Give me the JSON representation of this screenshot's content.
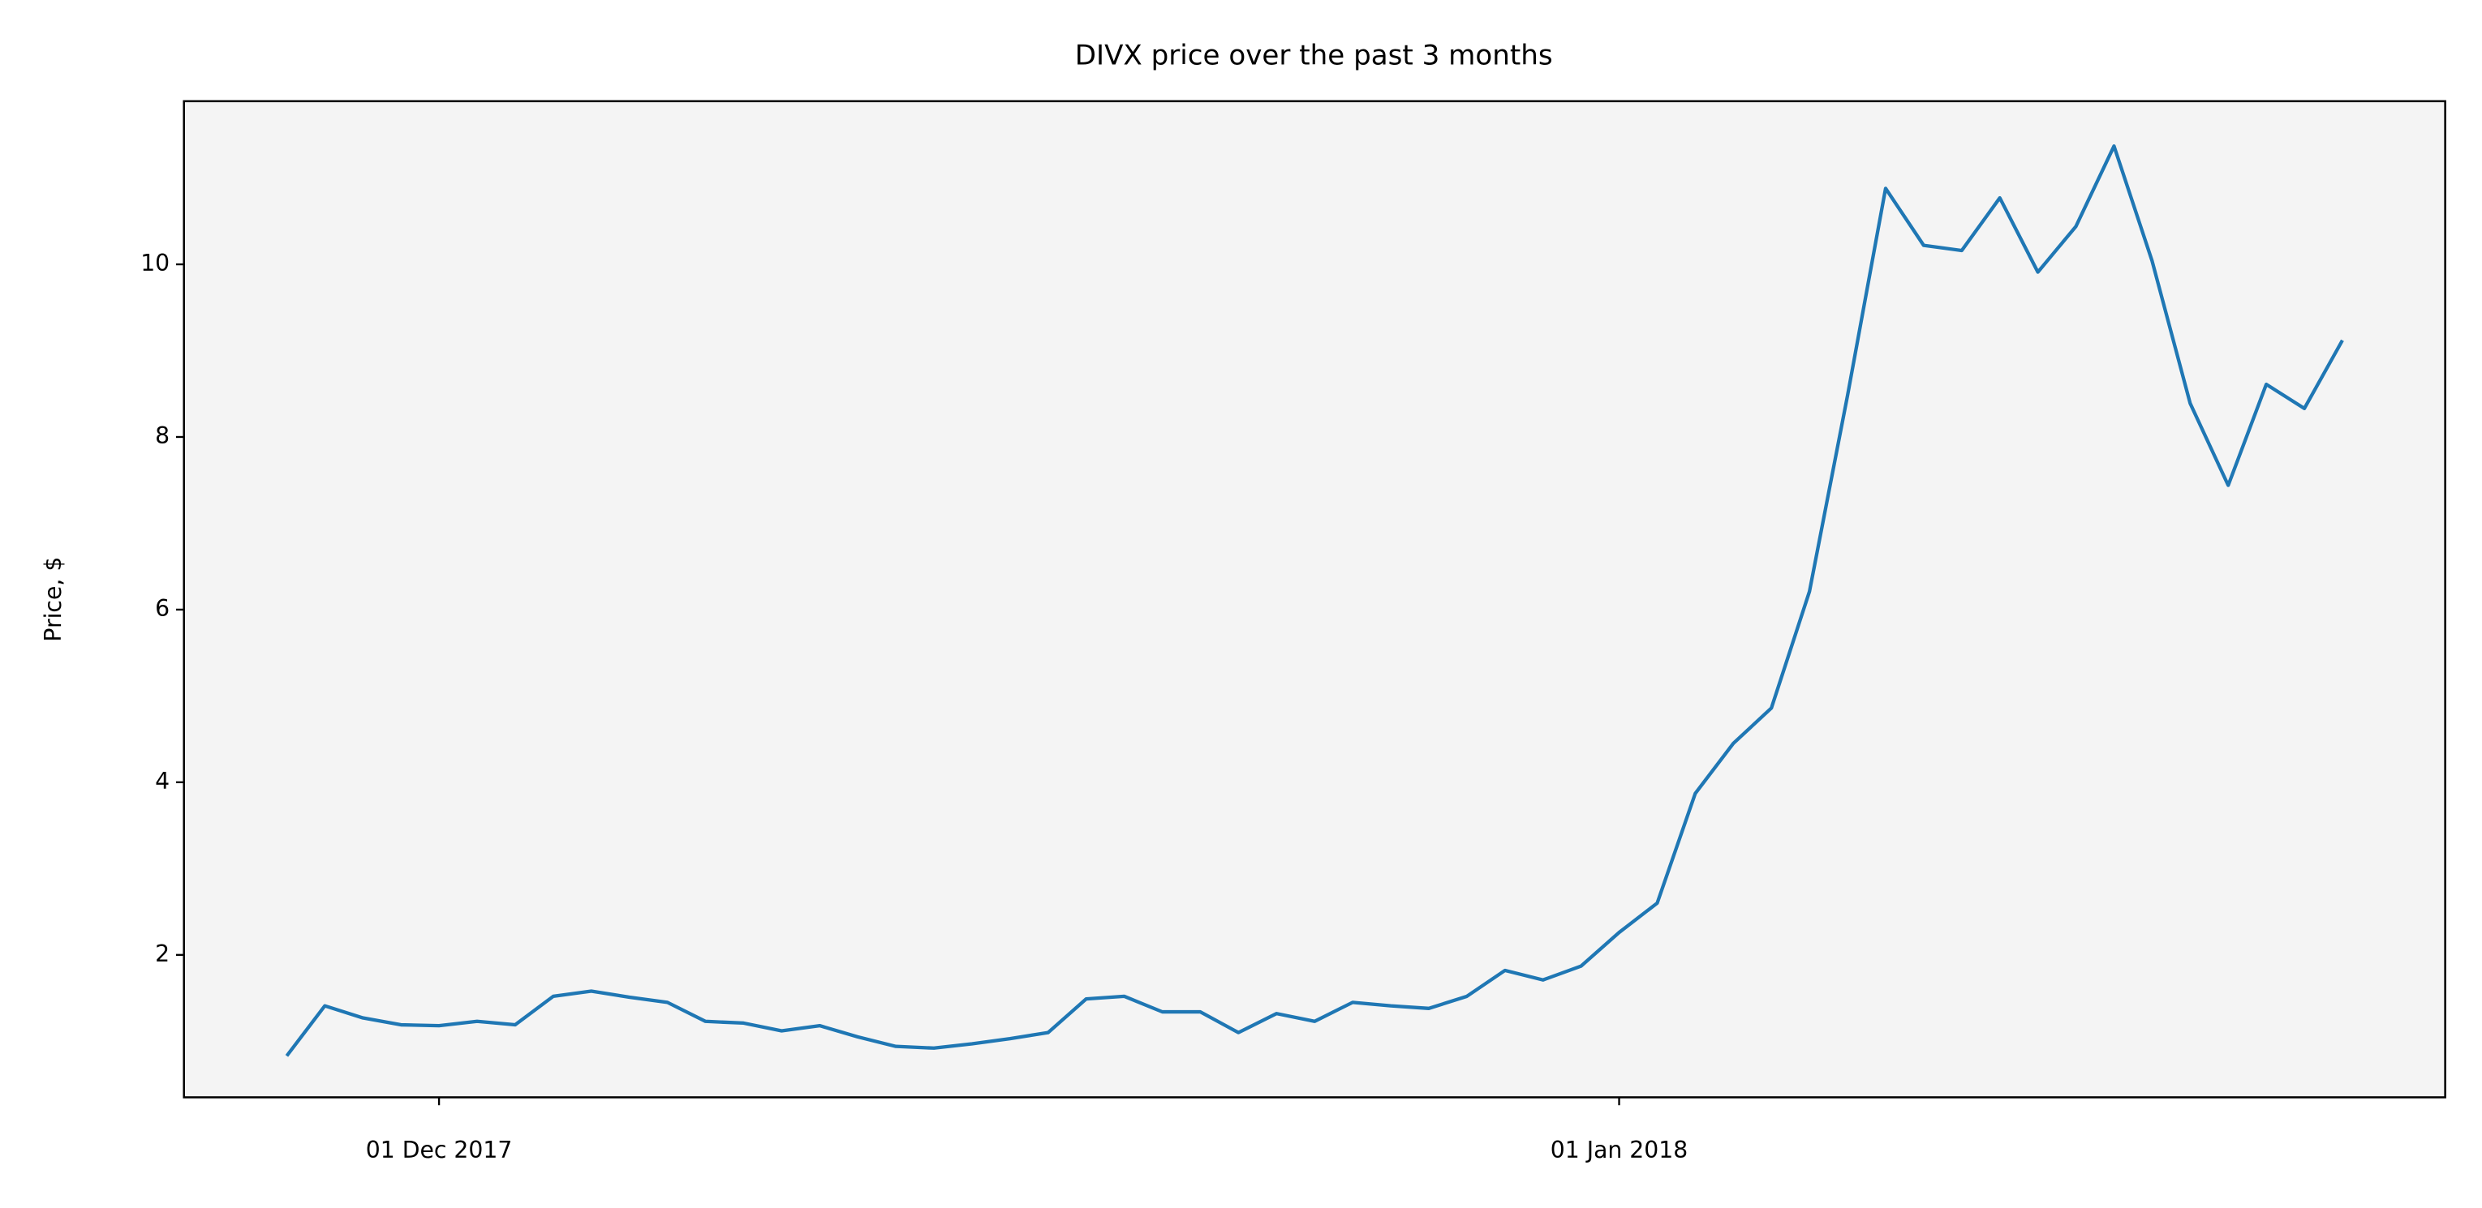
{
  "chart_data": {
    "type": "line",
    "title": "DIVX price over the past 3 months",
    "y_label": "Price, $",
    "x": [
      "2017-11-27",
      "2017-11-28",
      "2017-11-29",
      "2017-11-30",
      "2017-12-01",
      "2017-12-02",
      "2017-12-03",
      "2017-12-04",
      "2017-12-05",
      "2017-12-06",
      "2017-12-07",
      "2017-12-08",
      "2017-12-09",
      "2017-12-10",
      "2017-12-11",
      "2017-12-12",
      "2017-12-13",
      "2017-12-14",
      "2017-12-15",
      "2017-12-16",
      "2017-12-17",
      "2017-12-18",
      "2017-12-19",
      "2017-12-20",
      "2017-12-21",
      "2017-12-22",
      "2017-12-23",
      "2017-12-24",
      "2017-12-25",
      "2017-12-26",
      "2017-12-27",
      "2017-12-28",
      "2017-12-29",
      "2017-12-30",
      "2017-12-31",
      "2018-01-01",
      "2018-01-02",
      "2018-01-03",
      "2018-01-04",
      "2018-01-05",
      "2018-01-06",
      "2018-01-07",
      "2018-01-08",
      "2018-01-09",
      "2018-01-10",
      "2018-01-11",
      "2018-01-12",
      "2018-01-13",
      "2018-01-14",
      "2018-01-15",
      "2018-01-16",
      "2018-01-17",
      "2018-01-18",
      "2018-01-19",
      "2018-01-20"
    ],
    "series": [
      {
        "name": "DIVX",
        "color": "#1f77b4",
        "values": [
          0.83,
          1.41,
          1.27,
          1.19,
          1.18,
          1.23,
          1.19,
          1.52,
          1.58,
          1.51,
          1.45,
          1.23,
          1.21,
          1.12,
          1.18,
          1.05,
          0.94,
          0.92,
          0.97,
          1.03,
          1.1,
          1.49,
          1.52,
          1.34,
          1.34,
          1.1,
          1.32,
          1.23,
          1.45,
          1.41,
          1.38,
          1.52,
          1.82,
          1.71,
          1.87,
          2.26,
          2.6,
          3.87,
          4.45,
          4.86,
          6.21,
          8.48,
          10.88,
          10.22,
          10.16,
          10.77,
          9.91,
          10.44,
          11.37,
          10.04,
          8.39,
          7.44,
          8.61,
          8.33,
          9.12
        ]
      }
    ],
    "xlim": [
      "2017-11-24T07:12:00Z",
      "2018-01-22T16:48:00Z"
    ],
    "xticks": [
      {
        "value": "2017-12-01",
        "label": "01 Dec 2017"
      },
      {
        "value": "2018-01-01",
        "label": "01 Jan 2018"
      }
    ],
    "ylim": [
      0.35,
      11.89
    ],
    "yticks": [
      2,
      4,
      6,
      8,
      10
    ],
    "background": "#f4f4f4"
  }
}
